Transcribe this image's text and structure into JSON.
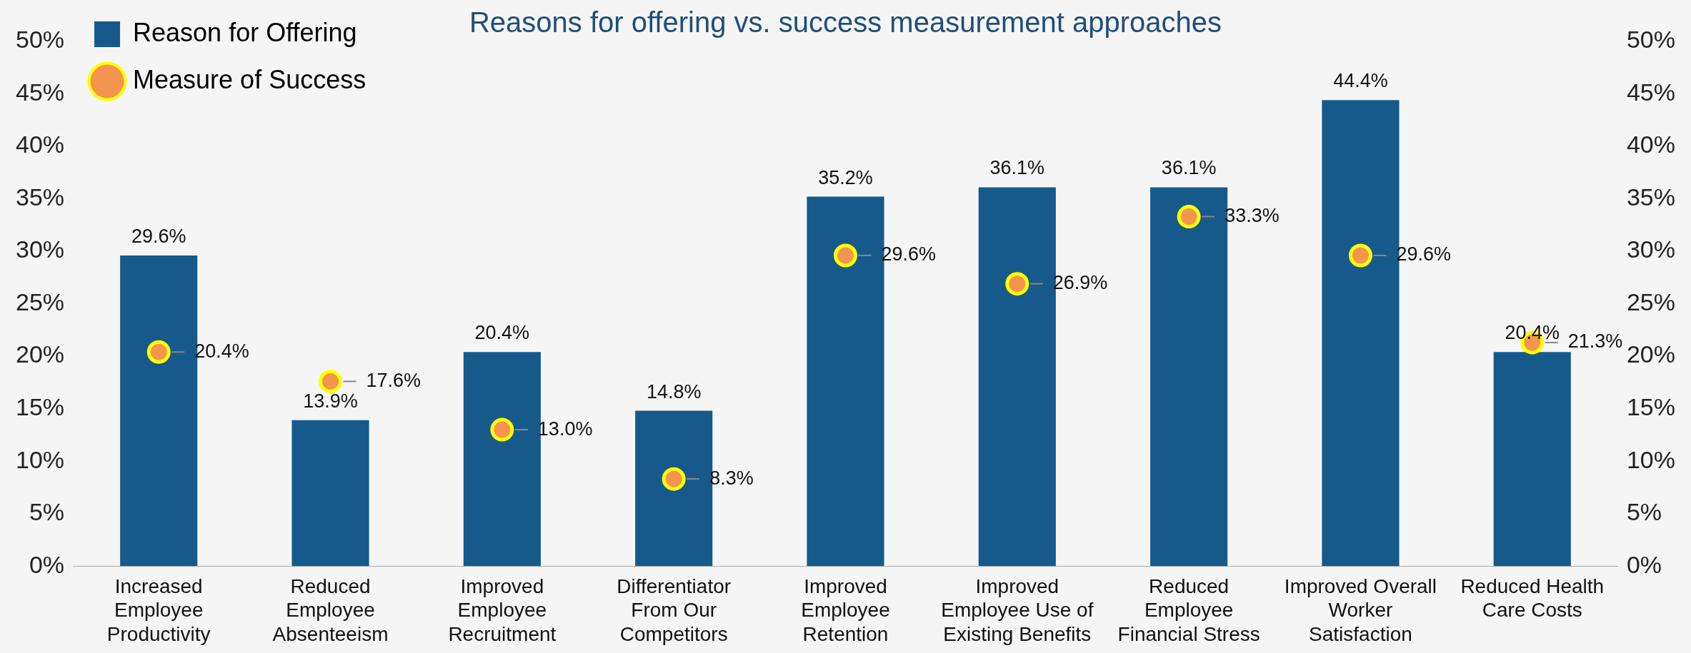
{
  "chart_data": {
    "type": "bar",
    "subtitle": "Reasons for offering vs. success measurement approaches",
    "categories": [
      "Increased Employee Productivity",
      "Reduced Employee Absenteeism",
      "Improved Employee Recruitment",
      "Differentiator From Our Competitors",
      "Improved Employee Retention",
      "Improved Employee Use of Existing Benefits",
      "Reduced Employee Financial Stress",
      "Improved Overall Worker Satisfaction",
      "Reduced Health Care Costs"
    ],
    "series": [
      {
        "name": "Reason for Offering",
        "color": "#165a8c",
        "values": [
          29.6,
          13.9,
          20.4,
          14.8,
          35.2,
          36.1,
          36.1,
          44.4,
          20.4
        ]
      },
      {
        "name": "Measure of Success",
        "type": "scatter",
        "color": "#f4954f",
        "value_labels": [
          "20.4%",
          "17.6%",
          "13.0%",
          "8.3%",
          "29.6%",
          "26.9%",
          "33.3%",
          "29.6%",
          "21.3%"
        ],
        "x": [
          "Increased Employee Productivity",
          "Reduced Employee Absenteeism",
          "Improved Employee Recruitment",
          "Differentiator From Our Competitors",
          "Improved Employee Retention",
          "Improved Employee Use of Existing Benefits",
          "Reduced Employee Financial Stress",
          "Improved Overall Worker Satisfaction",
          "Reduced Health Care Costs"
        ],
        "values": [
          20.4,
          17.6,
          13.0,
          8.3,
          29.6,
          26.9,
          33.3,
          29.6,
          21.3
        ]
      }
    ],
    "ylim": [
      0,
      50
    ],
    "yticks": [
      {
        "value": 0,
        "label": "0%"
      },
      {
        "value": 5,
        "label": "5%"
      },
      {
        "value": 10,
        "label": "10%"
      },
      {
        "value": 15,
        "label": "15%"
      },
      {
        "value": 20,
        "label": "20%"
      },
      {
        "value": 25,
        "label": "25%"
      },
      {
        "value": 30,
        "label": "30%"
      },
      {
        "value": 35,
        "label": "35%"
      },
      {
        "value": 40,
        "label": "40%"
      },
      {
        "value": 45,
        "label": "45%"
      },
      {
        "value": 50,
        "label": "50%"
      }
    ],
    "y2lim": [
      0,
      50
    ],
    "y2ticks": [
      {
        "value": 0,
        "label": "0%"
      },
      {
        "value": 5,
        "label": "5%"
      },
      {
        "value": 10,
        "label": "10%"
      },
      {
        "value": 15,
        "label": "15%"
      },
      {
        "value": 20,
        "label": "20%"
      },
      {
        "value": 25,
        "label": "25%"
      },
      {
        "value": 30,
        "label": "30%"
      },
      {
        "value": 35,
        "label": "35%"
      },
      {
        "value": 40,
        "label": "40%"
      },
      {
        "value": 45,
        "label": "45%"
      },
      {
        "value": 50,
        "label": "50%"
      }
    ],
    "value_labels": [
      "29.6%",
      "13.9%",
      "20.4%",
      "14.8%",
      "35.2%",
      "36.1%",
      "36.1%",
      "44.4%",
      "20.4%"
    ],
    "legend": "top left",
    "grid": false,
    "marker": "circle"
  }
}
